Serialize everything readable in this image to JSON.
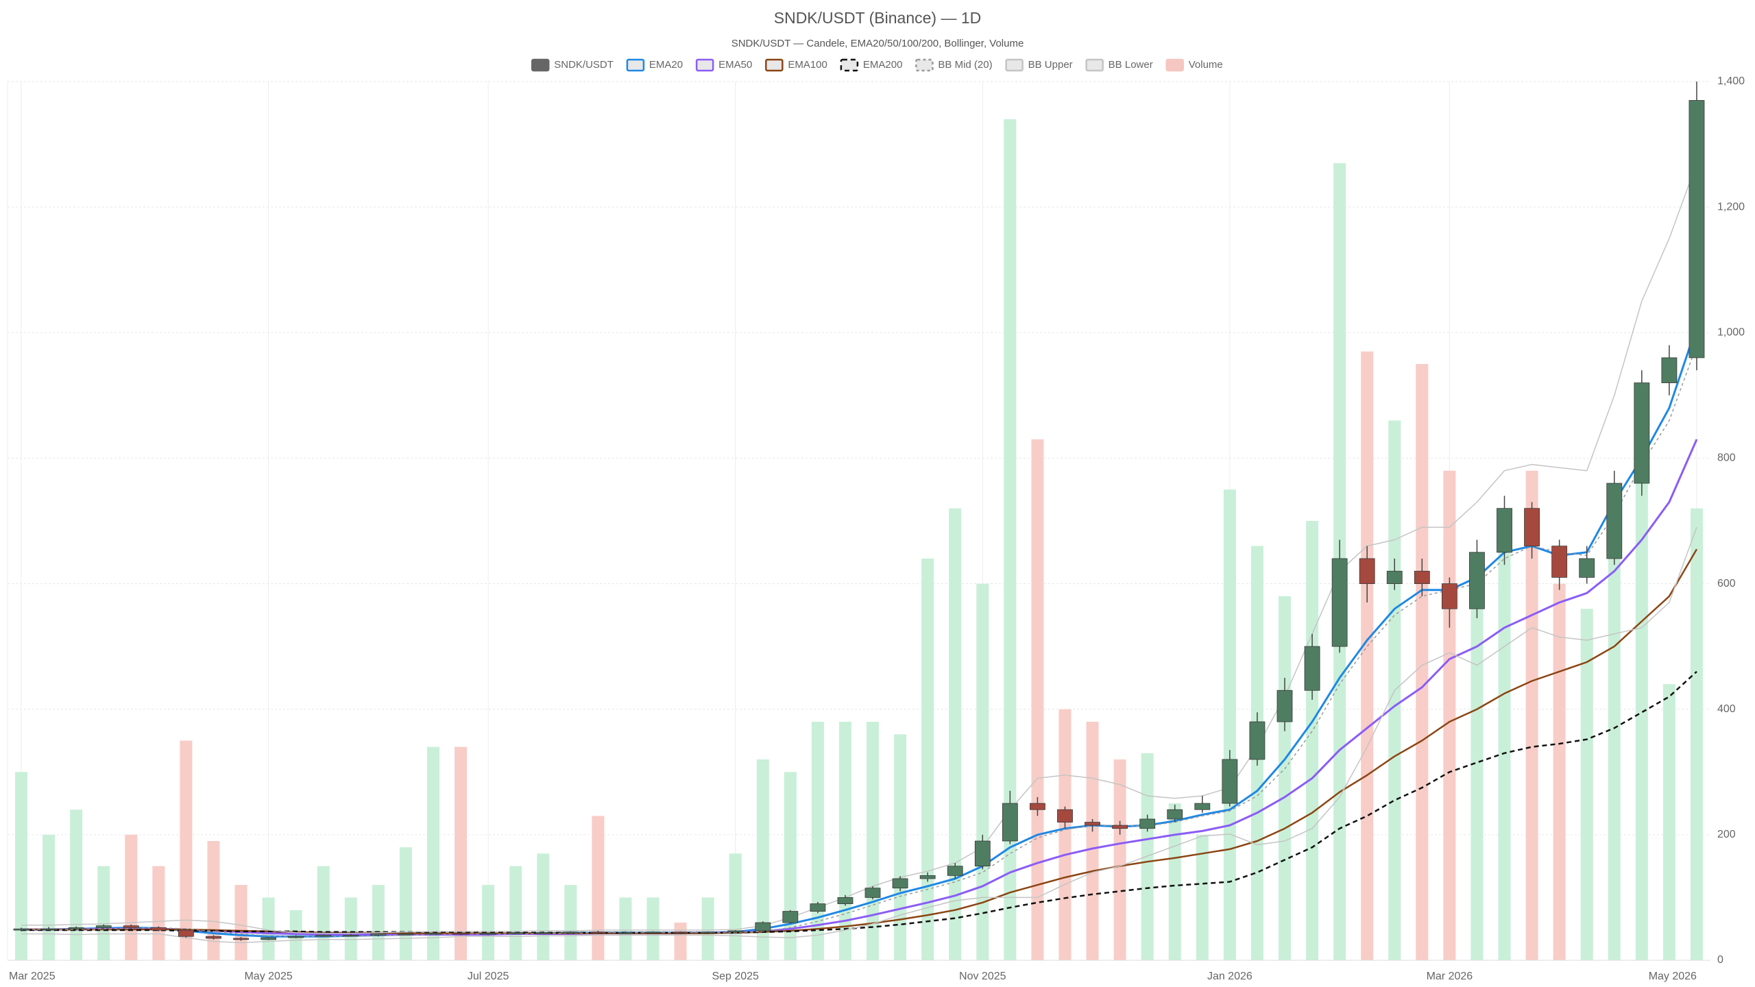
{
  "chart_data": {
    "type": "candlestick",
    "title": "SNDK/USDT (Binance) — 1D",
    "subtitle": "SNDK/USDT — Candele, EMA20/50/100/200, Bollinger, Volume",
    "categories": [
      "Mar 2025",
      null,
      null,
      null,
      null,
      null,
      null,
      null,
      null,
      "May 2025",
      null,
      null,
      null,
      null,
      null,
      null,
      null,
      "Jul 2025",
      null,
      null,
      null,
      null,
      null,
      null,
      null,
      null,
      "Sep 2025",
      null,
      null,
      null,
      null,
      null,
      null,
      null,
      null,
      "Nov 2025",
      null,
      null,
      null,
      null,
      null,
      null,
      null,
      null,
      "Jan 2026",
      null,
      null,
      null,
      null,
      null,
      null,
      null,
      "Mar 2026",
      null,
      null,
      null,
      null,
      null,
      null,
      null,
      null,
      "May 2026"
    ],
    "candles": {
      "name": "SNDK/USDT",
      "color": "#666666",
      "up_color": "#4f7d61",
      "down_color": "#a5493f",
      "open": [
        48,
        50,
        50,
        52,
        55,
        52,
        48,
        38,
        35,
        33,
        36,
        38,
        40,
        40,
        42,
        42,
        43,
        42,
        43,
        44,
        44,
        45,
        44,
        44,
        45,
        44,
        45,
        47,
        60,
        78,
        90,
        100,
        115,
        130,
        135,
        150,
        190,
        250,
        240,
        220,
        215,
        210,
        225,
        240,
        250,
        320,
        380,
        430,
        500,
        640,
        600,
        620,
        600,
        560,
        650,
        720,
        660,
        610,
        640,
        760,
        920,
        960
      ],
      "high": [
        52,
        53,
        54,
        57,
        57,
        54,
        50,
        40,
        37,
        37,
        40,
        41,
        42,
        43,
        44,
        45,
        45,
        44,
        45,
        46,
        46,
        47,
        46,
        46,
        46,
        46,
        48,
        62,
        80,
        93,
        104,
        118,
        134,
        140,
        155,
        200,
        270,
        260,
        245,
        225,
        222,
        232,
        248,
        262,
        335,
        395,
        450,
        520,
        670,
        660,
        640,
        640,
        610,
        670,
        740,
        730,
        670,
        660,
        780,
        940,
        980,
        1400
      ],
      "low": [
        46,
        48,
        48,
        50,
        50,
        46,
        36,
        33,
        31,
        32,
        35,
        37,
        38,
        38,
        40,
        41,
        40,
        40,
        41,
        42,
        42,
        42,
        42,
        42,
        42,
        42,
        43,
        45,
        58,
        75,
        87,
        97,
        110,
        125,
        130,
        145,
        185,
        230,
        210,
        205,
        200,
        205,
        220,
        235,
        245,
        310,
        365,
        415,
        490,
        570,
        590,
        580,
        530,
        545,
        630,
        640,
        590,
        600,
        630,
        740,
        900,
        940
      ],
      "close": [
        50,
        50,
        52,
        55,
        52,
        48,
        38,
        35,
        33,
        36,
        38,
        40,
        40,
        42,
        42,
        43,
        42,
        43,
        44,
        44,
        45,
        44,
        44,
        45,
        44,
        45,
        47,
        60,
        78,
        90,
        100,
        115,
        130,
        135,
        150,
        190,
        250,
        240,
        220,
        215,
        210,
        225,
        240,
        250,
        320,
        380,
        430,
        500,
        640,
        600,
        620,
        600,
        560,
        650,
        720,
        660,
        610,
        640,
        760,
        920,
        960,
        1370
      ]
    },
    "volume": {
      "name": "Volume",
      "color": "#f6c6c0",
      "up_color": "#c9efd8",
      "down_color": "#f8cdc7",
      "values": [
        300,
        200,
        240,
        150,
        200,
        150,
        350,
        190,
        120,
        100,
        80,
        150,
        100,
        120,
        180,
        340,
        340,
        120,
        150,
        170,
        120,
        230,
        100,
        100,
        60,
        100,
        170,
        320,
        300,
        380,
        380,
        380,
        360,
        640,
        720,
        600,
        1340,
        830,
        400,
        380,
        320,
        330,
        250,
        200,
        750,
        660,
        580,
        700,
        1270,
        970,
        860,
        950,
        780,
        600,
        650,
        780,
        600,
        560,
        700,
        850,
        440,
        720
      ]
    },
    "series": [
      {
        "name": "EMA20",
        "color": "#1e88e5",
        "width": 3,
        "dash": null,
        "values": [
          49,
          49,
          50,
          51,
          52,
          51,
          47,
          43,
          40,
          38,
          38,
          38,
          39,
          40,
          41,
          42,
          42,
          42,
          43,
          43,
          44,
          44,
          44,
          44,
          44,
          44,
          45,
          50,
          58,
          68,
          80,
          93,
          107,
          118,
          130,
          150,
          180,
          200,
          210,
          215,
          213,
          215,
          222,
          232,
          240,
          270,
          320,
          380,
          450,
          510,
          560,
          590,
          590,
          610,
          650,
          660,
          645,
          650,
          730,
          800,
          880,
          1010
        ]
      },
      {
        "name": "EMA50",
        "color": "#8b5cf6",
        "width": 3,
        "dash": null,
        "values": [
          49,
          49,
          49,
          50,
          50,
          50,
          49,
          47,
          45,
          43,
          42,
          41,
          41,
          41,
          41,
          41,
          41,
          41,
          42,
          42,
          42,
          43,
          43,
          43,
          43,
          44,
          44,
          46,
          50,
          56,
          63,
          72,
          82,
          92,
          103,
          118,
          140,
          155,
          168,
          178,
          186,
          193,
          200,
          206,
          215,
          235,
          260,
          290,
          335,
          370,
          405,
          435,
          480,
          500,
          530,
          550,
          570,
          585,
          620,
          670,
          730,
          830
        ]
      },
      {
        "name": "EMA100",
        "color": "#8b4513",
        "width": 2.5,
        "dash": null,
        "values": [
          49,
          49,
          49,
          49,
          49,
          49,
          49,
          48,
          47,
          46,
          45,
          44,
          44,
          44,
          43,
          43,
          43,
          43,
          43,
          43,
          43,
          43,
          43,
          43,
          43,
          43,
          44,
          45,
          47,
          50,
          54,
          59,
          65,
          72,
          80,
          92,
          108,
          120,
          132,
          142,
          150,
          157,
          163,
          170,
          177,
          190,
          210,
          235,
          268,
          295,
          325,
          350,
          380,
          400,
          425,
          445,
          460,
          475,
          500,
          540,
          580,
          655
        ]
      },
      {
        "name": "EMA200",
        "color": "#111111",
        "width": 2.5,
        "dash": "7 5",
        "values": [
          48,
          48,
          48,
          48,
          48,
          48,
          47,
          47,
          46,
          46,
          46,
          45,
          45,
          45,
          45,
          45,
          45,
          45,
          44,
          44,
          44,
          44,
          44,
          44,
          44,
          44,
          44,
          45,
          46,
          48,
          50,
          53,
          57,
          62,
          67,
          75,
          84,
          92,
          99,
          105,
          110,
          115,
          119,
          122,
          125,
          140,
          160,
          180,
          210,
          230,
          255,
          275,
          300,
          315,
          330,
          340,
          345,
          352,
          370,
          395,
          420,
          460
        ]
      },
      {
        "name": "BB Mid (20)",
        "color": "#999999",
        "width": 1.5,
        "dash": "4 4",
        "values": [
          49,
          49,
          49,
          50,
          51,
          52,
          50,
          46,
          42,
          39,
          38,
          38,
          38,
          39,
          40,
          41,
          42,
          42,
          42,
          43,
          43,
          44,
          44,
          44,
          44,
          44,
          44,
          46,
          52,
          62,
          74,
          88,
          102,
          113,
          125,
          140,
          170,
          195,
          208,
          215,
          215,
          214,
          220,
          230,
          238,
          262,
          305,
          365,
          440,
          500,
          550,
          580,
          590,
          600,
          640,
          660,
          650,
          645,
          710,
          790,
          860,
          980
        ]
      },
      {
        "name": "BB Upper",
        "color": "#c4c4c4",
        "width": 1.5,
        "dash": null,
        "values": [
          56,
          56,
          57,
          58,
          60,
          62,
          64,
          62,
          56,
          48,
          44,
          43,
          43,
          44,
          45,
          46,
          46,
          46,
          46,
          47,
          47,
          48,
          48,
          48,
          48,
          48,
          49,
          55,
          68,
          84,
          100,
          118,
          132,
          142,
          155,
          180,
          240,
          290,
          295,
          290,
          280,
          262,
          258,
          262,
          275,
          340,
          420,
          520,
          620,
          660,
          670,
          690,
          690,
          730,
          780,
          790,
          785,
          780,
          900,
          1050,
          1150,
          1270
        ]
      },
      {
        "name": "BB Lower",
        "color": "#c4c4c4",
        "width": 1.5,
        "dash": null,
        "values": [
          42,
          42,
          41,
          42,
          42,
          42,
          36,
          30,
          28,
          30,
          32,
          33,
          33,
          34,
          35,
          36,
          38,
          38,
          38,
          39,
          39,
          40,
          40,
          40,
          40,
          40,
          39,
          37,
          36,
          40,
          48,
          58,
          72,
          84,
          95,
          100,
          100,
          100,
          121,
          140,
          150,
          166,
          182,
          198,
          201,
          184,
          190,
          210,
          260,
          340,
          430,
          470,
          490,
          470,
          500,
          530,
          515,
          510,
          520,
          530,
          570,
          690
        ]
      }
    ],
    "ylim": [
      0,
      1400
    ],
    "yticks": [
      0,
      200,
      400,
      600,
      800,
      {
        "value": 1000,
        "label": "1,000"
      },
      {
        "value": 1200,
        "label": "1,200"
      },
      {
        "value": 1400,
        "label": "1,400"
      }
    ],
    "grid": true,
    "legend": "top"
  }
}
